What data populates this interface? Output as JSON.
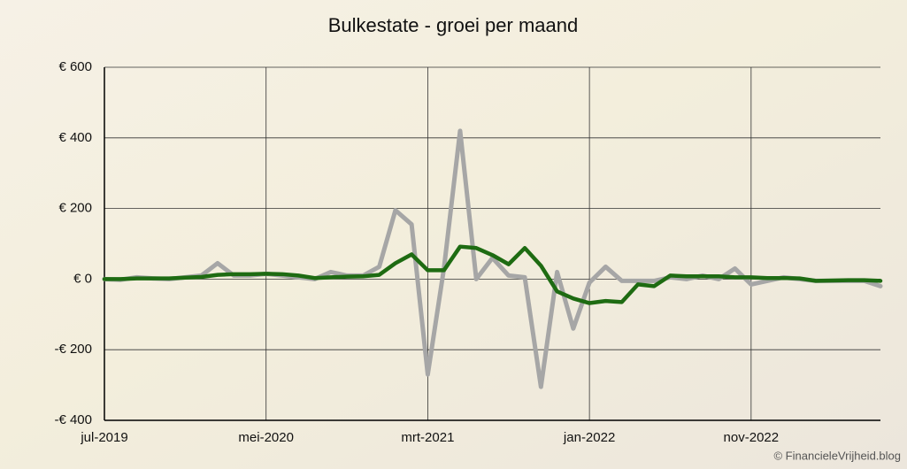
{
  "chart_data": {
    "type": "line",
    "title": "Bulkestate - groei per maand",
    "credit": "© FinancieleVrijheid.blog",
    "categories": [
      "jul-2019",
      null,
      null,
      null,
      null,
      null,
      null,
      null,
      null,
      null,
      "mei-2020",
      null,
      null,
      null,
      null,
      null,
      null,
      null,
      null,
      null,
      "mrt-2021",
      null,
      null,
      null,
      null,
      null,
      null,
      null,
      null,
      null,
      "jan-2022",
      null,
      null,
      null,
      null,
      null,
      null,
      null,
      null,
      null,
      "nov-2022",
      null,
      null,
      null,
      null,
      null,
      null,
      null,
      null
    ],
    "series": [
      {
        "color": "#a6a6a6",
        "values": [
          0,
          -2,
          5,
          2,
          0,
          5,
          10,
          45,
          10,
          10,
          15,
          10,
          5,
          0,
          20,
          10,
          10,
          35,
          195,
          155,
          -270,
          30,
          420,
          0,
          60,
          10,
          5,
          -305,
          20,
          -140,
          -10,
          35,
          -5,
          -5,
          -5,
          5,
          0,
          10,
          0,
          30,
          -15,
          -5,
          5,
          0,
          -5,
          -5,
          -5,
          -5,
          -20
        ]
      },
      {
        "color": "#1e6b12",
        "values": [
          0,
          0,
          2,
          2,
          2,
          4,
          6,
          12,
          14,
          14,
          15,
          14,
          10,
          3,
          5,
          7,
          8,
          12,
          45,
          70,
          25,
          25,
          92,
          88,
          68,
          42,
          88,
          38,
          -35,
          -55,
          -68,
          -62,
          -65,
          -15,
          -20,
          10,
          8,
          8,
          8,
          5,
          5,
          3,
          3,
          2,
          -5,
          -4,
          -3,
          -3,
          -5
        ]
      }
    ],
    "ylim": [
      -400,
      600
    ],
    "yticks": [
      {
        "value": -400,
        "label": "-€ 400"
      },
      {
        "value": -200,
        "label": "-€ 200"
      },
      {
        "value": 0,
        "label": "€ 0"
      },
      {
        "value": 200,
        "label": "€ 200"
      },
      {
        "value": 400,
        "label": "€ 400"
      },
      {
        "value": 600,
        "label": "€ 600"
      }
    ],
    "grid": true
  }
}
